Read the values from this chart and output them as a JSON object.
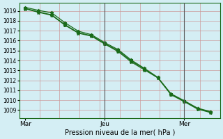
{
  "bg_color": "#d4eef4",
  "grid_color_h": "#cc9999",
  "grid_color_v": "#cc9999",
  "line_color": "#1a6b1a",
  "axis_label": "Pression niveau de la mer( hPa )",
  "xtick_labels": [
    "Mar",
    "Jeu",
    "Mer"
  ],
  "xtick_positions": [
    0,
    4,
    8
  ],
  "xlim": [
    -0.3,
    9.8
  ],
  "ylim": [
    1008.2,
    1019.8
  ],
  "yticks": [
    1009,
    1010,
    1011,
    1012,
    1013,
    1014,
    1015,
    1016,
    1017,
    1018,
    1019
  ],
  "vline_color": "#555555",
  "vlines": [
    4,
    8
  ],
  "x_pts": [
    0,
    0.67,
    1.33,
    2.0,
    2.67,
    3.33,
    4.0,
    4.67,
    5.33,
    6.0,
    6.67,
    7.33,
    8.0,
    8.67,
    9.33
  ],
  "low": [
    1019.2,
    1018.85,
    1018.55,
    1017.55,
    1016.75,
    1016.45,
    1015.65,
    1014.9,
    1013.85,
    1013.05,
    1012.25,
    1010.55,
    1009.85,
    1009.1,
    1008.75
  ],
  "mid": [
    1019.25,
    1018.9,
    1018.6,
    1017.6,
    1016.8,
    1016.5,
    1015.7,
    1015.0,
    1013.95,
    1013.15,
    1012.25,
    1010.6,
    1009.9,
    1009.15,
    1008.8
  ],
  "high": [
    1019.35,
    1019.05,
    1018.8,
    1017.8,
    1016.95,
    1016.6,
    1015.8,
    1015.1,
    1014.05,
    1013.2,
    1012.3,
    1010.65,
    1009.95,
    1009.2,
    1008.85
  ]
}
